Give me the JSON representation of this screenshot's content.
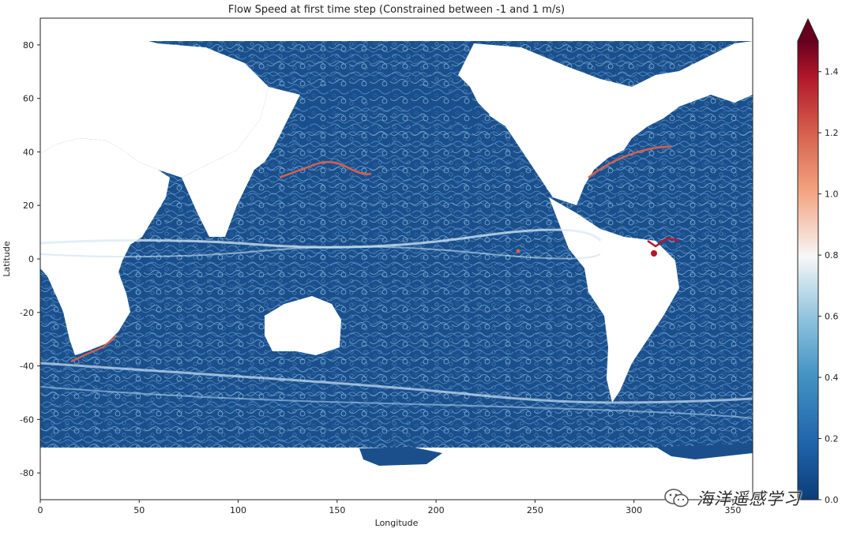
{
  "chart_data": {
    "type": "heatmap",
    "title": "Flow Speed at first time step (Constrained between -1 and 1 m/s)",
    "xlabel": "Longitude",
    "ylabel": "Latitude",
    "xlim": [
      0,
      360
    ],
    "ylim": [
      -90,
      90
    ],
    "x_ticks": [
      0,
      50,
      100,
      150,
      200,
      250,
      300,
      350
    ],
    "y_ticks": [
      -80,
      -60,
      -40,
      -20,
      0,
      20,
      40,
      60,
      80
    ],
    "colorbar": {
      "min": 0.0,
      "max": 1.5,
      "extend": "max",
      "colormap": "RdBu_r",
      "ticks": [
        0.0,
        0.2,
        0.4,
        0.6,
        0.8,
        1.0,
        1.2,
        1.4
      ],
      "tick_labels": [
        "0.0",
        "0.2",
        "0.4",
        "0.6",
        "0.8",
        "1.0",
        "1.2",
        "1.4"
      ],
      "colors": [
        "#0b3d7a",
        "#2166ac",
        "#4393c3",
        "#92c5de",
        "#f7f7f7",
        "#f4a582",
        "#d6604d",
        "#b2182b",
        "#67001f"
      ]
    },
    "land_color": "#ffffff",
    "ocean_base_color": "#1a4f8c",
    "grid": false
  },
  "watermark": {
    "text": "海洋遥感学习",
    "icon": "wechat-icon"
  }
}
